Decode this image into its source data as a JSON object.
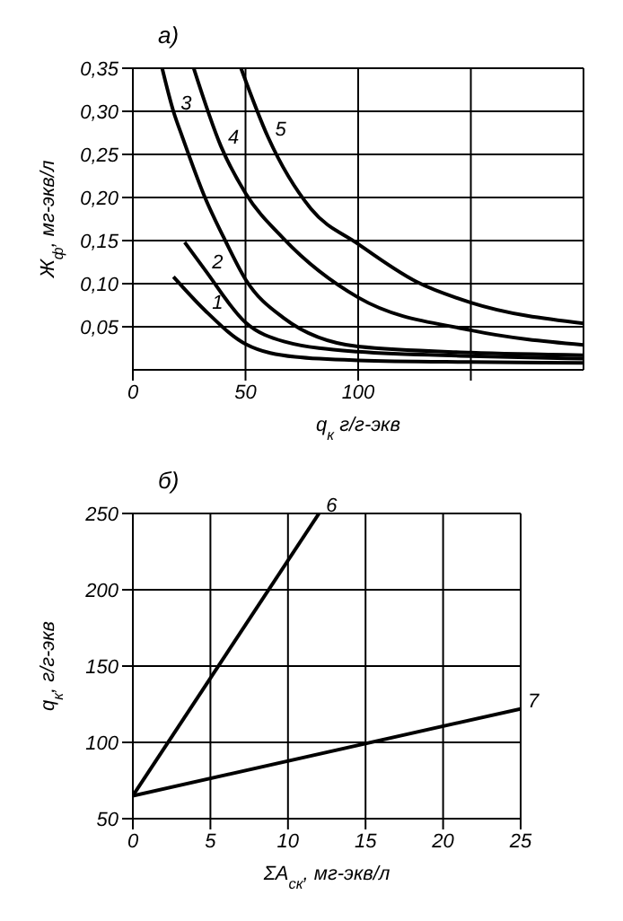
{
  "chart_data": [
    {
      "type": "line",
      "title": "а)",
      "xlabel": "q$_{к}$ г/г-экв",
      "ylabel": "Ж$_{ф}$, мг-экв/л",
      "xlim": [
        0,
        200
      ],
      "ylim": [
        0,
        0.35
      ],
      "xticks": [
        0,
        50,
        100,
        {
          "value": 150,
          "label": null
        }
      ],
      "yticks": [
        {
          "value": 0.05,
          "label": "0,05"
        },
        {
          "value": 0.1,
          "label": "0,10"
        },
        {
          "value": 0.15,
          "label": "0,15"
        },
        {
          "value": 0.2,
          "label": "0,20"
        },
        {
          "value": 0.25,
          "label": "0,25"
        },
        {
          "value": 0.3,
          "label": "0,30"
        },
        {
          "value": 0.35,
          "label": "0,35"
        }
      ],
      "grid": true,
      "legend": false,
      "marker": "none",
      "line_style": "solid",
      "series": [
        {
          "name": "1",
          "color": "#000000",
          "x": [
            18,
            32,
            50,
            72,
            100,
            150,
            200
          ],
          "values": [
            0.108,
            0.069,
            0.03,
            0.015,
            0.011,
            0.009,
            0.008
          ]
        },
        {
          "name": "2",
          "color": "#000000",
          "x": [
            23,
            32,
            50,
            67,
            100,
            150,
            200
          ],
          "values": [
            0.148,
            0.116,
            0.055,
            0.033,
            0.021,
            0.016,
            0.013
          ]
        },
        {
          "name": "3",
          "color": "#000000",
          "x": [
            13,
            18,
            22,
            32,
            41,
            50,
            67,
            100,
            150,
            200
          ],
          "values": [
            0.35,
            0.3,
            0.27,
            0.2,
            0.15,
            0.105,
            0.06,
            0.027,
            0.02,
            0.017
          ]
        },
        {
          "name": "4",
          "color": "#000000",
          "x": [
            27,
            39,
            50,
            67,
            100,
            150,
            200
          ],
          "values": [
            0.35,
            0.26,
            0.205,
            0.152,
            0.084,
            0.046,
            0.029
          ]
        },
        {
          "name": "5",
          "color": "#000000",
          "x": [
            48,
            60,
            79,
            100,
            126,
            150,
            200
          ],
          "values": [
            0.35,
            0.27,
            0.187,
            0.146,
            0.102,
            0.078,
            0.054
          ]
        }
      ]
    },
    {
      "type": "line",
      "title": "б)",
      "xlabel": "ΣA$_{ск}$, мг-экв/л",
      "ylabel": "q$_{к}$, г/г-экв",
      "xlim": [
        0,
        25
      ],
      "ylim": [
        50,
        250
      ],
      "xticks": [
        0,
        5,
        10,
        15,
        20,
        25
      ],
      "yticks": [
        50,
        100,
        150,
        200,
        250
      ],
      "grid": true,
      "legend": false,
      "marker": "none",
      "line_style": "solid",
      "series": [
        {
          "name": "6",
          "color": "#000000",
          "x": [
            0,
            12
          ],
          "values": [
            65,
            250
          ]
        },
        {
          "name": "7",
          "color": "#000000",
          "x": [
            0,
            25
          ],
          "values": [
            65,
            122
          ]
        }
      ]
    }
  ]
}
